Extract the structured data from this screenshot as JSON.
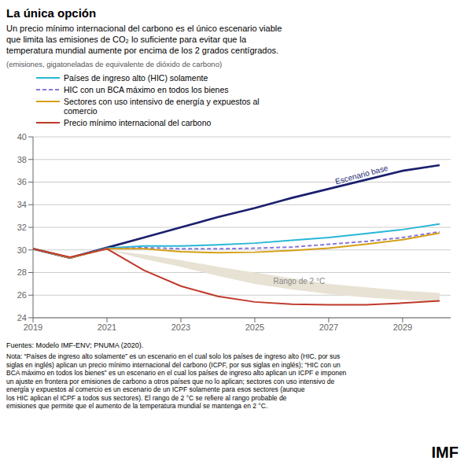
{
  "chart_data": {
    "type": "line",
    "title": "La única opción",
    "subtitle": "Un precio mínimo internacional del carbono es el único escenario viable\nque limita las emisiones de CO₂ lo suficiente para evitar que la\ntemperatura mundial aumente por encima de los 2 grados centígrados.",
    "ylabel": "(emisiones, gigatoneladas de equivalente de dióxido de carbono)",
    "source": "Fuentes: Modelo IMF-ENV; PNUMA (2020).",
    "note": "Nota: “Países de ingreso alto solamente” es un escenario en el cual solo los países de ingreso alto (HIC, por sus\nsiglas en inglés) aplican un precio mínimo internacional del carbono  (ICPF, por sus siglas en inglés); “HIC con un\nBCA máximo en todos los bienes” es un escenario en el cual los países de ingreso alto aplican un ICPF e imponen\nun ajuste en frontera por emisiones de carbono a otros países que no lo aplican; sectores con uso intensivo de\nenergía y expuestos al comercio es un escenario de un ICPF solamente para esos sectores (aunque\nlos HIC aplican el ICPF a todos sus sectores).  El rango de 2 °C se refiere al rango probable de\nemisiones que permite que el aumento de la temperatura mundial se mantenga en 2 °C.",
    "logo": "IMF",
    "x": [
      2019,
      2020,
      2021,
      2022,
      2023,
      2024,
      2025,
      2026,
      2027,
      2028,
      2029,
      2030
    ],
    "xlim": [
      2019,
      2030.3
    ],
    "xticks": [
      2019,
      2021,
      2023,
      2025,
      2027,
      2029
    ],
    "ylim": [
      24,
      40
    ],
    "yticks": [
      24,
      26,
      28,
      30,
      32,
      34,
      36,
      38,
      40
    ],
    "grid": true,
    "legend": "upper left",
    "band": {
      "lower": [
        30.0,
        29.5,
        30.0,
        29.2,
        28.5,
        27.7,
        27.0,
        26.5,
        26.1,
        25.8,
        25.6,
        25.4
      ],
      "upper": [
        30.0,
        29.5,
        30.0,
        29.6,
        29.1,
        28.5,
        28.0,
        27.5,
        27.0,
        26.7,
        26.4,
        26.2
      ],
      "color": "#e8e2d4"
    },
    "series": [
      {
        "color": "#1b1f6e",
        "line_style": "solid",
        "values": [
          30.1,
          29.3,
          30.2,
          31.1,
          32.0,
          32.9,
          33.7,
          34.6,
          35.4,
          36.2,
          37.0,
          37.5
        ]
      },
      {
        "name": "Países de ingreso alto (HIC) solamente",
        "color": "#29b6d6",
        "line_style": "solid",
        "values": [
          30.1,
          29.3,
          30.15,
          30.35,
          30.35,
          30.45,
          30.6,
          30.85,
          31.1,
          31.45,
          31.8,
          32.3
        ]
      },
      {
        "name": "HIC con un BCA máximo en todos los bienes",
        "color": "#8877dd",
        "line_style": "dashed",
        "values": [
          30.1,
          29.3,
          30.1,
          30.2,
          30.1,
          30.1,
          30.15,
          30.25,
          30.5,
          30.75,
          31.1,
          31.6
        ]
      },
      {
        "name": "Sectores con uso intensivo de energía y expuestos al\ncomercio",
        "color": "#d4a017",
        "line_style": "solid",
        "values": [
          30.1,
          29.3,
          30.1,
          30.1,
          29.85,
          29.75,
          29.8,
          29.95,
          30.15,
          30.5,
          30.9,
          31.5
        ]
      },
      {
        "name": "Precio mínimo internacional del carbono",
        "color": "#c0392b",
        "line_style": "solid",
        "values": [
          30.1,
          29.35,
          30.1,
          28.2,
          26.8,
          25.9,
          25.4,
          25.2,
          25.15,
          25.15,
          25.3,
          25.5
        ]
      }
    ],
    "annotations": [
      {
        "text": "Escenario base",
        "x": 2027.2,
        "y": 35.8,
        "color": "#1b1f6e"
      },
      {
        "text": "Rango de 2 °C",
        "x": 2025.5,
        "y": 27.2,
        "color": "#888888"
      }
    ]
  }
}
